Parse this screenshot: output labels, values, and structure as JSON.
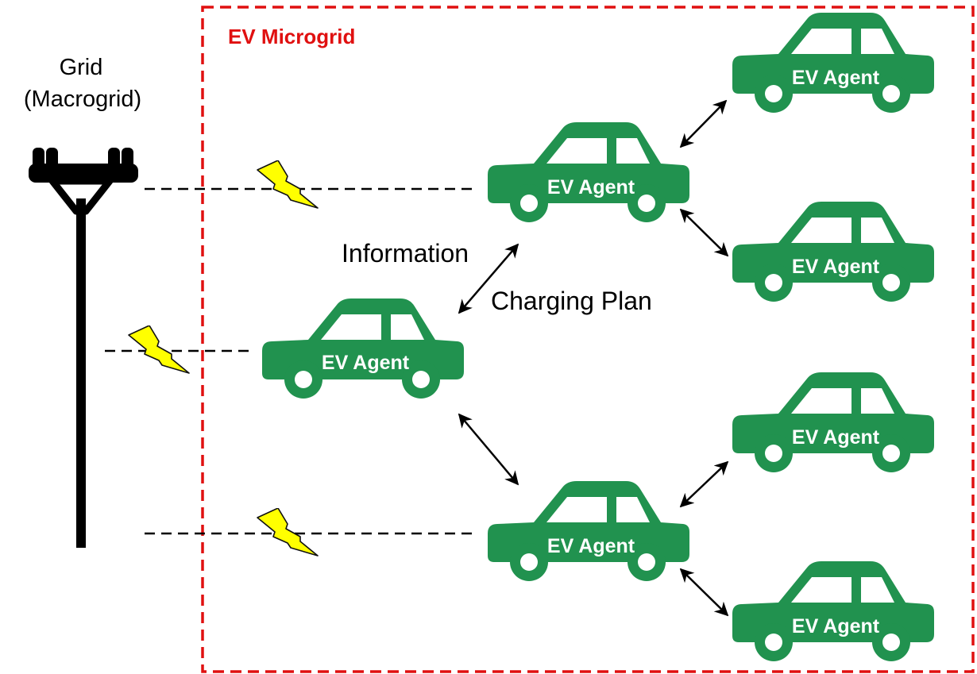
{
  "microgrid": {
    "title": "EV Microgrid",
    "border_color": "#e01010"
  },
  "grid": {
    "line1": "Grid",
    "line2": "(Macrogrid)"
  },
  "agents": {
    "label": "EV Agent",
    "color": "#21924f"
  },
  "link_labels": {
    "information": "Information",
    "charging_plan": "Charging Plan"
  },
  "bolt": {
    "color": "#ffff00"
  }
}
